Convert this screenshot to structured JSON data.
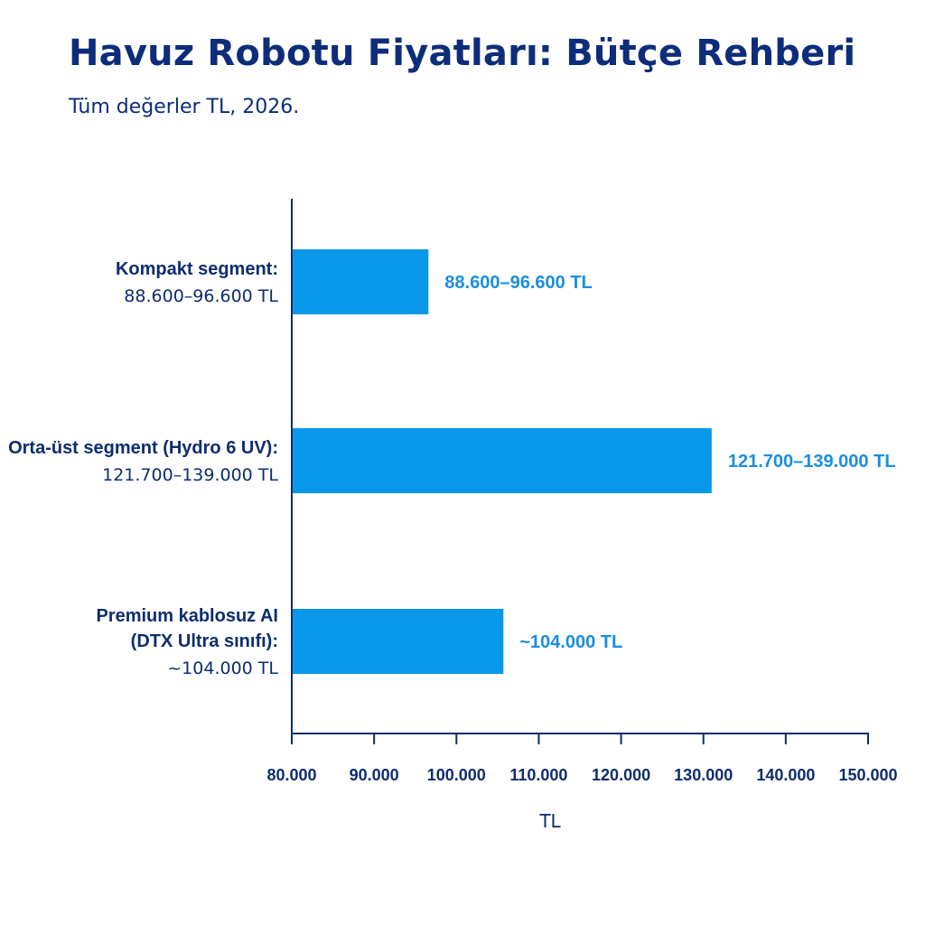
{
  "title": "Havuz Robotu Fiyatları: Bütçe Rehberi",
  "subtitle": "Tüm değerler TL, 2026.",
  "colors": {
    "text": "#0d2d7a",
    "bar": "#0897e9",
    "bar_label": "#1a8ee0",
    "axis": "#0d2d6e"
  },
  "chart_data": {
    "type": "bar",
    "orientation": "horizontal",
    "categories": [
      {
        "name_lines": [
          "Kompakt segment:"
        ],
        "range_label": "88.600–96.600 TL",
        "bar_label": "88.600–96.600 TL",
        "low": 88600,
        "high": 96600,
        "bar_value": 96600
      },
      {
        "name_lines": [
          "Orta-üst segment (Hydro 6 UV):"
        ],
        "range_label": "121.700–139.000 TL",
        "bar_label": "121.700–139.000 TL",
        "low": 121700,
        "high": 139000,
        "bar_value": 131000
      },
      {
        "name_lines": [
          "Premium kablosuz AI",
          "(DTX Ultra sınıfı):"
        ],
        "range_label": "~104.000 TL",
        "bar_label": "~104.000 TL",
        "low": 104000,
        "high": 104000,
        "bar_value": 105700
      }
    ],
    "xlim": [
      80000,
      150000
    ],
    "xticks": [
      80000,
      90000,
      100000,
      110000,
      120000,
      130000,
      140000,
      150000
    ],
    "xtick_labels": [
      "80.000",
      "90.000",
      "100.000",
      "110.000",
      "120.000",
      "130.000",
      "140.000",
      "150.000"
    ],
    "xlabel": "TL",
    "ylabel": "",
    "grid": false,
    "legend": "none"
  }
}
